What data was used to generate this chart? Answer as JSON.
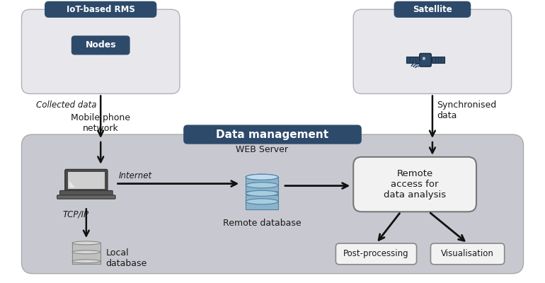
{
  "bg_color": "#ffffff",
  "dark_blue": "#2d4a6b",
  "light_gray_box": "#e8e8ec",
  "data_mgmt_bg": "#c8c8d0",
  "text_color": "#1a1a1a",
  "iot_label": "IoT-based RMS",
  "satellite_label": "Satellite",
  "nodes_label": "Nodes",
  "collected_data_label": "Collected data",
  "mobile_phone_label": "Mobile phone\nnetwork",
  "synchronised_label": "Synchronised\ndata",
  "data_mgmt_label": "Data management",
  "web_server_label": "WEB Server",
  "internet_label": "Internet",
  "tcp_ip_label": "TCP/IP",
  "local_db_label": "Local\ndatabase",
  "remote_db_label": "Remote database",
  "remote_access_label": "Remote\naccess for\ndata analysis",
  "post_processing_label": "Post-processing",
  "visualisation_label": "Visualisation"
}
